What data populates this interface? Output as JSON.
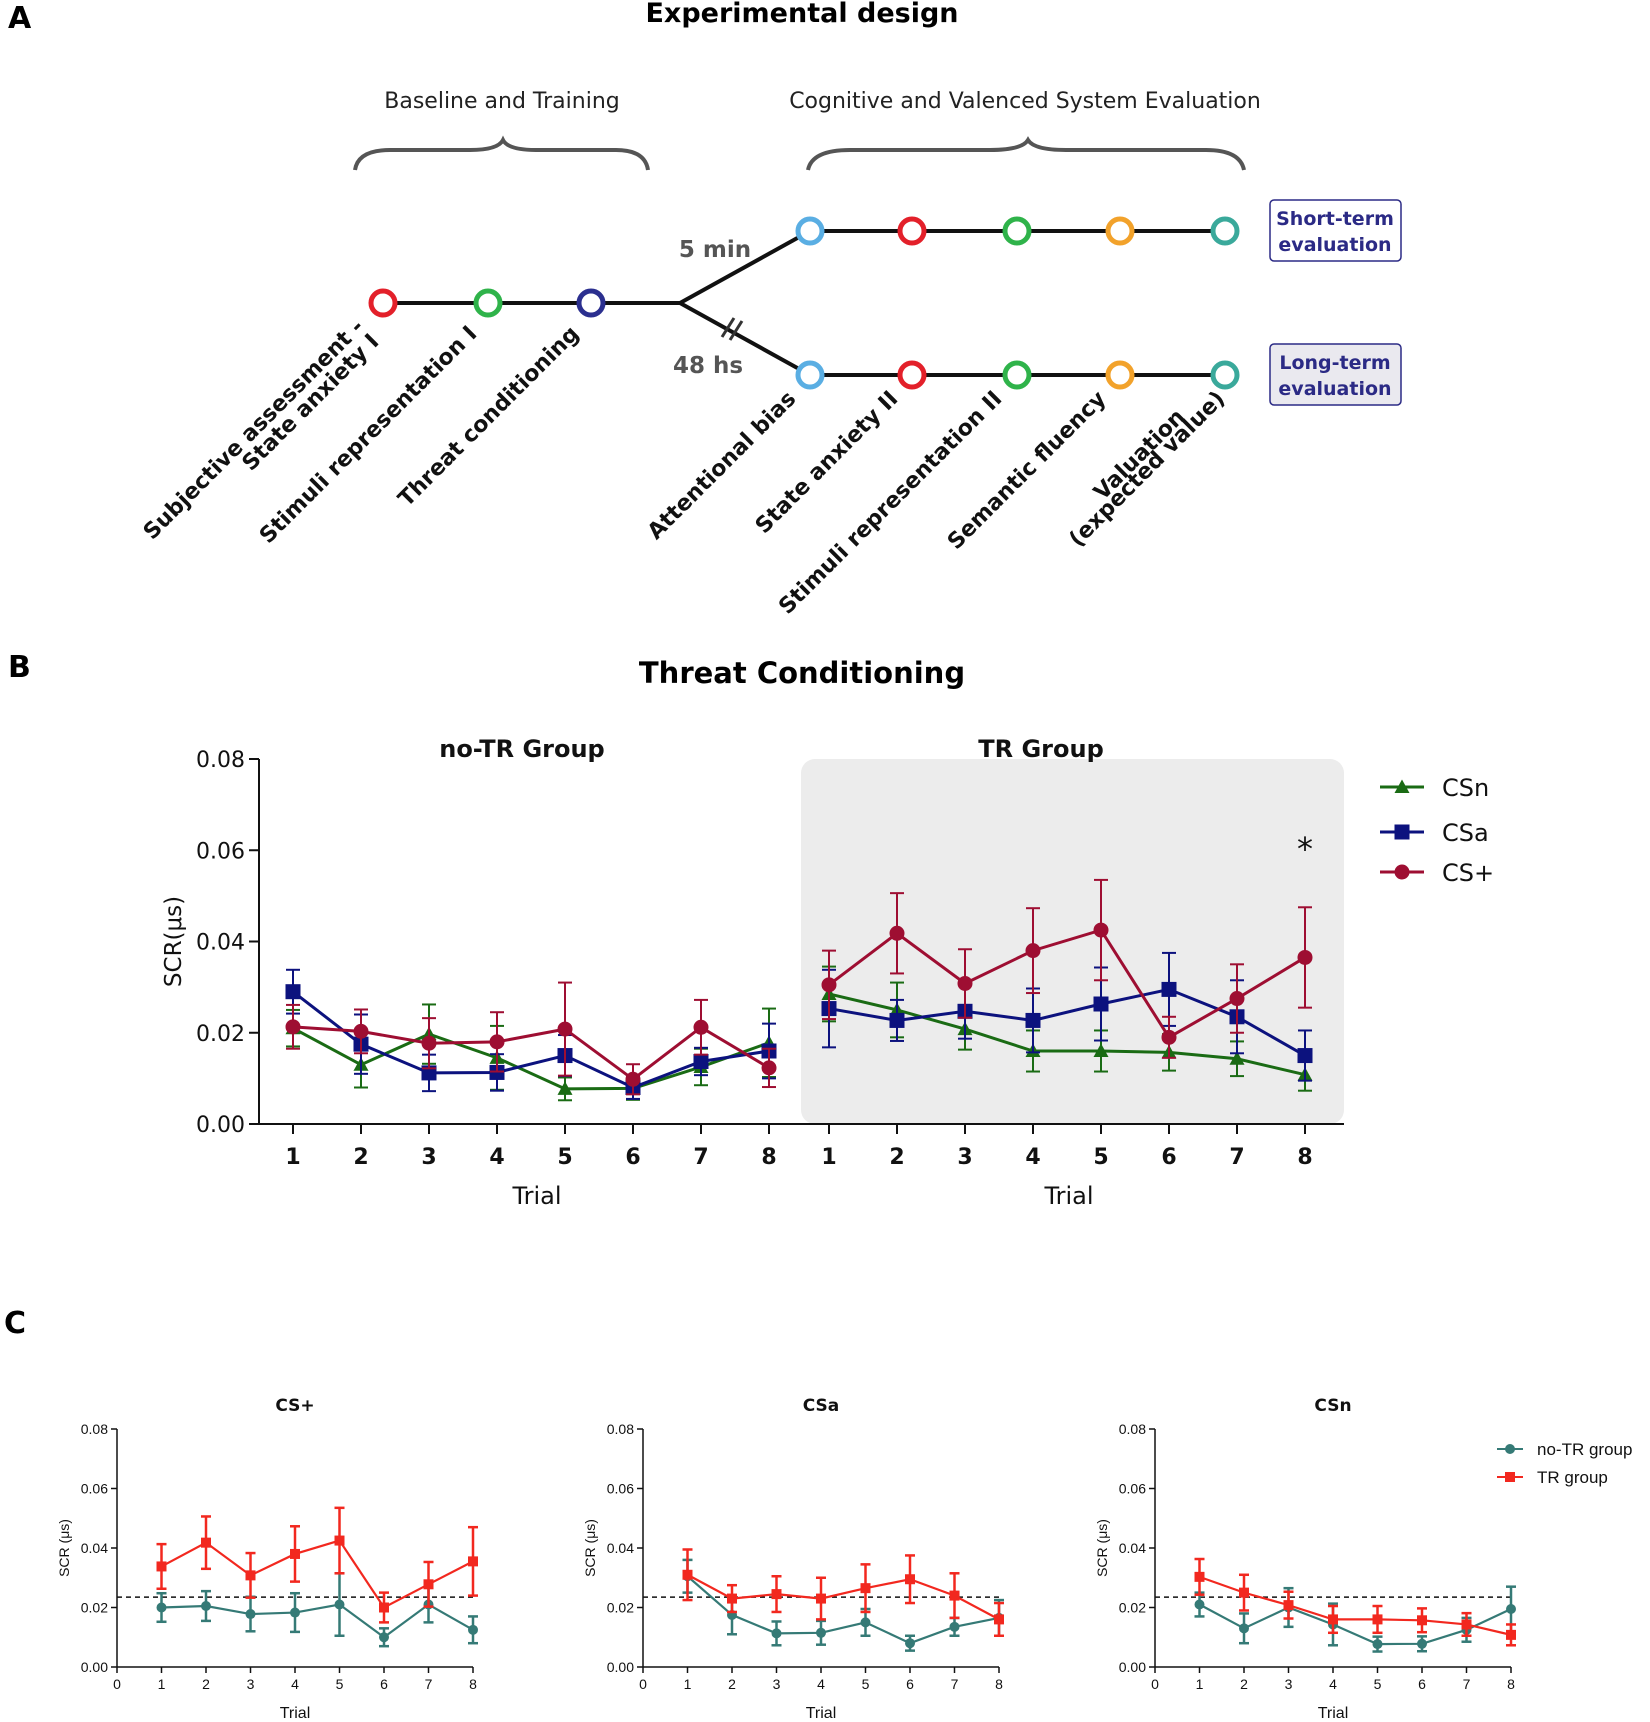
{
  "panel_a": {
    "letter": "A",
    "title": "Experimental design",
    "phase_left": "Baseline and Training",
    "phase_right": "Cognitive and Valenced System Evaluation",
    "delay_short": "5 min",
    "delay_long": "48 hs",
    "short_term_label_1": "Short-term",
    "short_term_label_2": "evaluation",
    "long_term_label_1": "Long-term",
    "long_term_label_2": "evaluation",
    "steps": {
      "subjective_1": "Subjective assessment -",
      "subjective_2": "State anxiety I",
      "stimuli_rep_1": "Stimuli representation I",
      "threat_cond": "Threat conditioning",
      "attentional": "Attentional bias",
      "state_anx_2": "State anxiety II",
      "stimuli_rep_2": "Stimuli representation II",
      "semantic": "Semantic fluency",
      "valuation_1": "Valuation",
      "valuation_2": "(expected value)"
    },
    "colors": {
      "red": "#e3202a",
      "green": "#2fb34a",
      "navy": "#2b2f8f",
      "lightblue": "#5aaee3",
      "orange": "#f2a22b",
      "teal": "#3aa99b",
      "label_box_text": "#2b2a85"
    }
  },
  "panel_b": {
    "letter": "B",
    "title": "Threat Conditioning"
  },
  "panel_c": {
    "letter": "C"
  },
  "chart_data": [
    {
      "type": "line",
      "title": "Threat Conditioning",
      "ylabel": "SCR(μs)",
      "xlabel": "Trial",
      "ylim": [
        0,
        0.08
      ],
      "yticks": [
        "0.00",
        "0.02",
        "0.04",
        "0.06",
        "0.08"
      ],
      "groups": [
        {
          "name": "no-TR Group",
          "xlabel": "Trial",
          "shaded": false
        },
        {
          "name": "TR Group",
          "xlabel": "Trial",
          "shaded": true
        }
      ],
      "categories": [
        "1",
        "2",
        "3",
        "4",
        "5",
        "6",
        "7",
        "8"
      ],
      "series": [
        {
          "name": "CSn",
          "color": "#1a6b14",
          "marker": "triangle",
          "values_noTR": [
            0.021,
            0.013,
            0.0197,
            0.0145,
            0.0077,
            0.0078,
            0.0125,
            0.0178
          ],
          "err_noTR": [
            0.004,
            0.005,
            0.0065,
            0.007,
            0.0025,
            0.0025,
            0.004,
            0.0075
          ],
          "values_TR": [
            0.0285,
            0.025,
            0.0208,
            0.016,
            0.016,
            0.0157,
            0.0143,
            0.0108
          ],
          "err_TR": [
            0.006,
            0.006,
            0.0045,
            0.0045,
            0.0045,
            0.004,
            0.0038,
            0.0035
          ]
        },
        {
          "name": "CSa",
          "color": "#0c127e",
          "marker": "square",
          "values_noTR": [
            0.029,
            0.0175,
            0.0112,
            0.0113,
            0.015,
            0.008,
            0.0137,
            0.016
          ],
          "err_noTR": [
            0.0048,
            0.0065,
            0.004,
            0.004,
            0.0045,
            0.0025,
            0.003,
            0.006
          ],
          "values_TR": [
            0.0253,
            0.0227,
            0.0247,
            0.0227,
            0.0263,
            0.0295,
            0.0235,
            0.015
          ],
          "err_TR": [
            0.0085,
            0.0045,
            0.006,
            0.007,
            0.008,
            0.008,
            0.008,
            0.0055
          ]
        },
        {
          "name": "CS+",
          "color": "#9e0e32",
          "marker": "circle",
          "values_noTR": [
            0.0213,
            0.0203,
            0.0177,
            0.018,
            0.0208,
            0.0098,
            0.0212,
            0.0123
          ],
          "err_noTR": [
            0.0048,
            0.0048,
            0.0055,
            0.0065,
            0.0102,
            0.0033,
            0.006,
            0.0042
          ],
          "values_TR": [
            0.0305,
            0.0418,
            0.0308,
            0.038,
            0.0425,
            0.019,
            0.0275,
            0.0365
          ],
          "err_TR": [
            0.0075,
            0.0088,
            0.0075,
            0.0093,
            0.011,
            0.0045,
            0.0075,
            0.011
          ]
        }
      ],
      "annotations": [
        "*"
      ],
      "legend": [
        "CSn",
        "CSa",
        "CS+"
      ],
      "legend_position": "right"
    },
    {
      "type": "line",
      "title": "CS+",
      "ylabel": "SCR (μs)",
      "xlabel": "Trial",
      "ylim": [
        0,
        0.08
      ],
      "xlim": [
        0,
        8
      ],
      "yticks": [
        "0.00",
        "0.02",
        "0.04",
        "0.06",
        "0.08"
      ],
      "xticks": [
        "0",
        "1",
        "2",
        "3",
        "4",
        "5",
        "6",
        "7",
        "8"
      ],
      "reference_line": 0.0235,
      "series": [
        {
          "name": "no-TR group",
          "color": "#357a76",
          "marker": "circle",
          "x": [
            1,
            2,
            3,
            4,
            5,
            6,
            7,
            8
          ],
          "values": [
            0.02,
            0.0205,
            0.0178,
            0.0183,
            0.021,
            0.01,
            0.021,
            0.0125
          ],
          "err": [
            0.0048,
            0.005,
            0.0058,
            0.0065,
            0.0105,
            0.003,
            0.006,
            0.0045
          ]
        },
        {
          "name": "TR group",
          "color": "#f2281f",
          "marker": "square",
          "x": [
            1,
            2,
            3,
            4,
            5,
            6,
            7,
            8
          ],
          "values": [
            0.0338,
            0.0418,
            0.0308,
            0.038,
            0.0425,
            0.02,
            0.0278,
            0.0355
          ],
          "err": [
            0.0075,
            0.0088,
            0.0075,
            0.0093,
            0.011,
            0.005,
            0.0075,
            0.0115
          ]
        }
      ]
    },
    {
      "type": "line",
      "title": "CSa",
      "ylabel": "SCR (μs)",
      "xlabel": "Trial",
      "ylim": [
        0,
        0.08
      ],
      "xlim": [
        0,
        8
      ],
      "yticks": [
        "0.00",
        "0.02",
        "0.04",
        "0.06",
        "0.08"
      ],
      "xticks": [
        "0",
        "1",
        "2",
        "3",
        "4",
        "5",
        "6",
        "7",
        "8"
      ],
      "reference_line": 0.0235,
      "series": [
        {
          "name": "no-TR group",
          "color": "#357a76",
          "marker": "circle",
          "x": [
            1,
            2,
            3,
            4,
            5,
            6,
            7,
            8
          ],
          "values": [
            0.0305,
            0.0175,
            0.0113,
            0.0115,
            0.015,
            0.008,
            0.0135,
            0.0165
          ],
          "err": [
            0.0055,
            0.0065,
            0.004,
            0.004,
            0.0045,
            0.0025,
            0.003,
            0.006
          ]
        },
        {
          "name": "TR group",
          "color": "#f2281f",
          "marker": "square",
          "x": [
            1,
            2,
            3,
            4,
            5,
            6,
            7,
            8
          ],
          "values": [
            0.031,
            0.023,
            0.0245,
            0.023,
            0.0265,
            0.0295,
            0.024,
            0.016
          ],
          "err": [
            0.0085,
            0.0045,
            0.006,
            0.007,
            0.008,
            0.008,
            0.0075,
            0.0055
          ]
        }
      ]
    },
    {
      "type": "line",
      "title": "CSn",
      "ylabel": "SCR (μs)",
      "xlabel": "Trial",
      "ylim": [
        0,
        0.08
      ],
      "xlim": [
        0,
        8
      ],
      "yticks": [
        "0.00",
        "0.02",
        "0.04",
        "0.06",
        "0.08"
      ],
      "xticks": [
        "0",
        "1",
        "2",
        "3",
        "4",
        "5",
        "6",
        "7",
        "8"
      ],
      "reference_line": 0.0235,
      "series": [
        {
          "name": "no-TR group",
          "color": "#357a76",
          "marker": "circle",
          "x": [
            1,
            2,
            3,
            4,
            5,
            6,
            7,
            8
          ],
          "values": [
            0.021,
            0.013,
            0.02,
            0.0143,
            0.0077,
            0.0078,
            0.0125,
            0.0195
          ],
          "err": [
            0.004,
            0.005,
            0.0065,
            0.007,
            0.0025,
            0.0025,
            0.004,
            0.0075
          ]
        },
        {
          "name": "TR group",
          "color": "#f2281f",
          "marker": "square",
          "x": [
            1,
            2,
            3,
            4,
            5,
            6,
            7,
            8
          ],
          "values": [
            0.0303,
            0.025,
            0.0208,
            0.016,
            0.016,
            0.0157,
            0.0143,
            0.0108
          ],
          "err": [
            0.006,
            0.006,
            0.0045,
            0.0045,
            0.0045,
            0.004,
            0.0038,
            0.0035
          ]
        }
      ],
      "legend": [
        "no-TR group",
        "TR group"
      ],
      "legend_position": "top-right"
    }
  ]
}
